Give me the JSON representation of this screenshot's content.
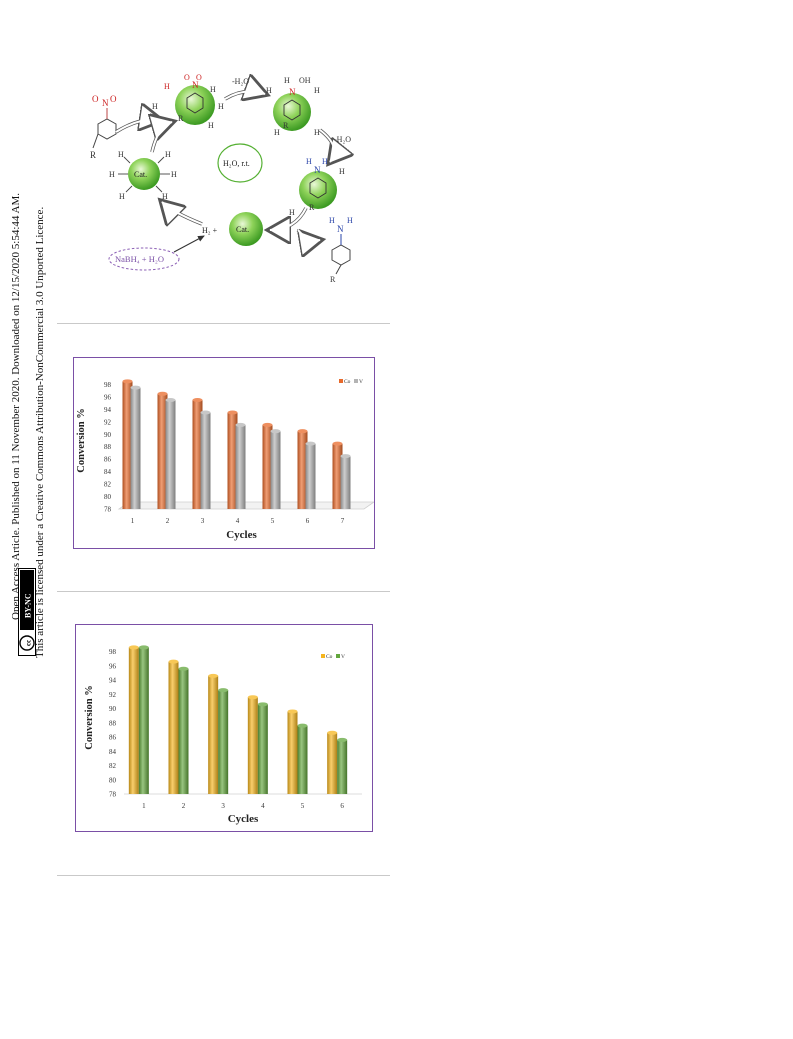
{
  "sidebar": {
    "line1": "Open Access Article. Published on 11 November 2020. Downloaded on 12/15/2020 5:54:44 AM.",
    "line2": "This article is licensed under a Creative Commons Attribution-NonCommercial 3.0 Unported Licence.",
    "cc_label": "BY-NC",
    "cc_symbol": "cc"
  },
  "scheme": {
    "solvent_label": "H₂O, r.t.",
    "reagent_label": "NaBH₄ + H₂O",
    "h2_label": "H₂ +",
    "cat_label": "Cat.",
    "minus_water_1": "-H₂O",
    "minus_water_2": "-H₂O",
    "substituent_r": "R",
    "nitrogen": "N",
    "oxygen": "O",
    "hydrogen": "H",
    "hydroxyl": "OH"
  },
  "chart_data": [
    {
      "type": "bar",
      "categories": [
        "1",
        "2",
        "3",
        "4",
        "5",
        "6",
        "7"
      ],
      "series": [
        {
          "name": "Co",
          "values": [
            98.5,
            96.5,
            95.5,
            93.5,
            91.5,
            90.5,
            88.5
          ],
          "color": "#e8692a"
        },
        {
          "name": "V",
          "values": [
            97.5,
            95.5,
            93.5,
            91.5,
            90.5,
            88.5,
            86.5
          ],
          "color": "#b4b4b4"
        }
      ],
      "yticks": [
        "78",
        "80",
        "82",
        "84",
        "86",
        "88",
        "90",
        "92",
        "94",
        "96",
        "98"
      ],
      "xlabel": "Cycles",
      "ylabel": "Conversion %",
      "ylim": [
        78,
        100
      ],
      "legend_position": "top-right",
      "grid": false
    },
    {
      "type": "bar",
      "categories": [
        "1",
        "2",
        "3",
        "4",
        "5",
        "6"
      ],
      "series": [
        {
          "name": "Co",
          "values": [
            98.6,
            96.6,
            94.6,
            91.6,
            89.6,
            86.6
          ],
          "color": "#f5b51e"
        },
        {
          "name": "V",
          "values": [
            98.6,
            95.6,
            92.6,
            90.6,
            87.6,
            85.6
          ],
          "color": "#62a63c"
        }
      ],
      "yticks": [
        "78",
        "80",
        "82",
        "84",
        "86",
        "88",
        "90",
        "92",
        "94",
        "96",
        "98"
      ],
      "xlabel": "Cycles",
      "ylabel": "Conversion %",
      "ylim": [
        78,
        99.5
      ],
      "legend_position": "top-right",
      "grid": false
    }
  ]
}
